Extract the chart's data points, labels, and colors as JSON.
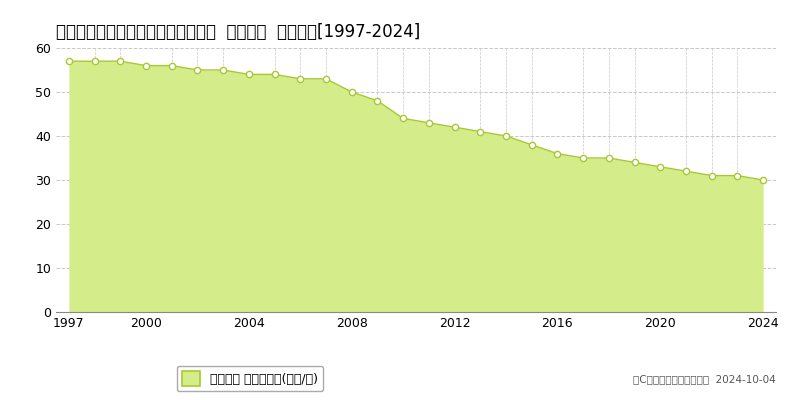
{
  "title": "鹿児島県鹿児島市三和町４８番１５  基準地価  地価推移[1997-2024]",
  "years": [
    1997,
    1998,
    1999,
    2000,
    2001,
    2002,
    2003,
    2004,
    2005,
    2006,
    2007,
    2008,
    2009,
    2010,
    2011,
    2012,
    2013,
    2014,
    2015,
    2016,
    2017,
    2018,
    2019,
    2020,
    2021,
    2022,
    2023,
    2024
  ],
  "values": [
    57,
    57,
    57,
    56,
    56,
    55,
    55,
    54,
    54,
    53,
    53,
    50,
    48,
    44,
    43,
    42,
    41,
    40,
    38,
    36,
    35,
    35,
    34,
    33,
    32,
    31,
    31,
    30
  ],
  "fill_color": "#d4ed8a",
  "line_color": "#a8c832",
  "marker_color": "#ffffff",
  "marker_edge_color": "#a8c832",
  "background_color": "#ffffff",
  "grid_color_h": "#c8c8c8",
  "grid_color_v": "#c8c8c8",
  "ylim": [
    0,
    60
  ],
  "yticks": [
    0,
    10,
    20,
    30,
    40,
    50,
    60
  ],
  "xticks": [
    1997,
    2000,
    2004,
    2008,
    2012,
    2016,
    2020,
    2024
  ],
  "legend_label": "基準地価 平均坪単価(万円/坪)",
  "copyright_text": "（C）土地価格ドットコム  2024-10-04",
  "title_fontsize": 12,
  "axis_fontsize": 9,
  "legend_fontsize": 9
}
